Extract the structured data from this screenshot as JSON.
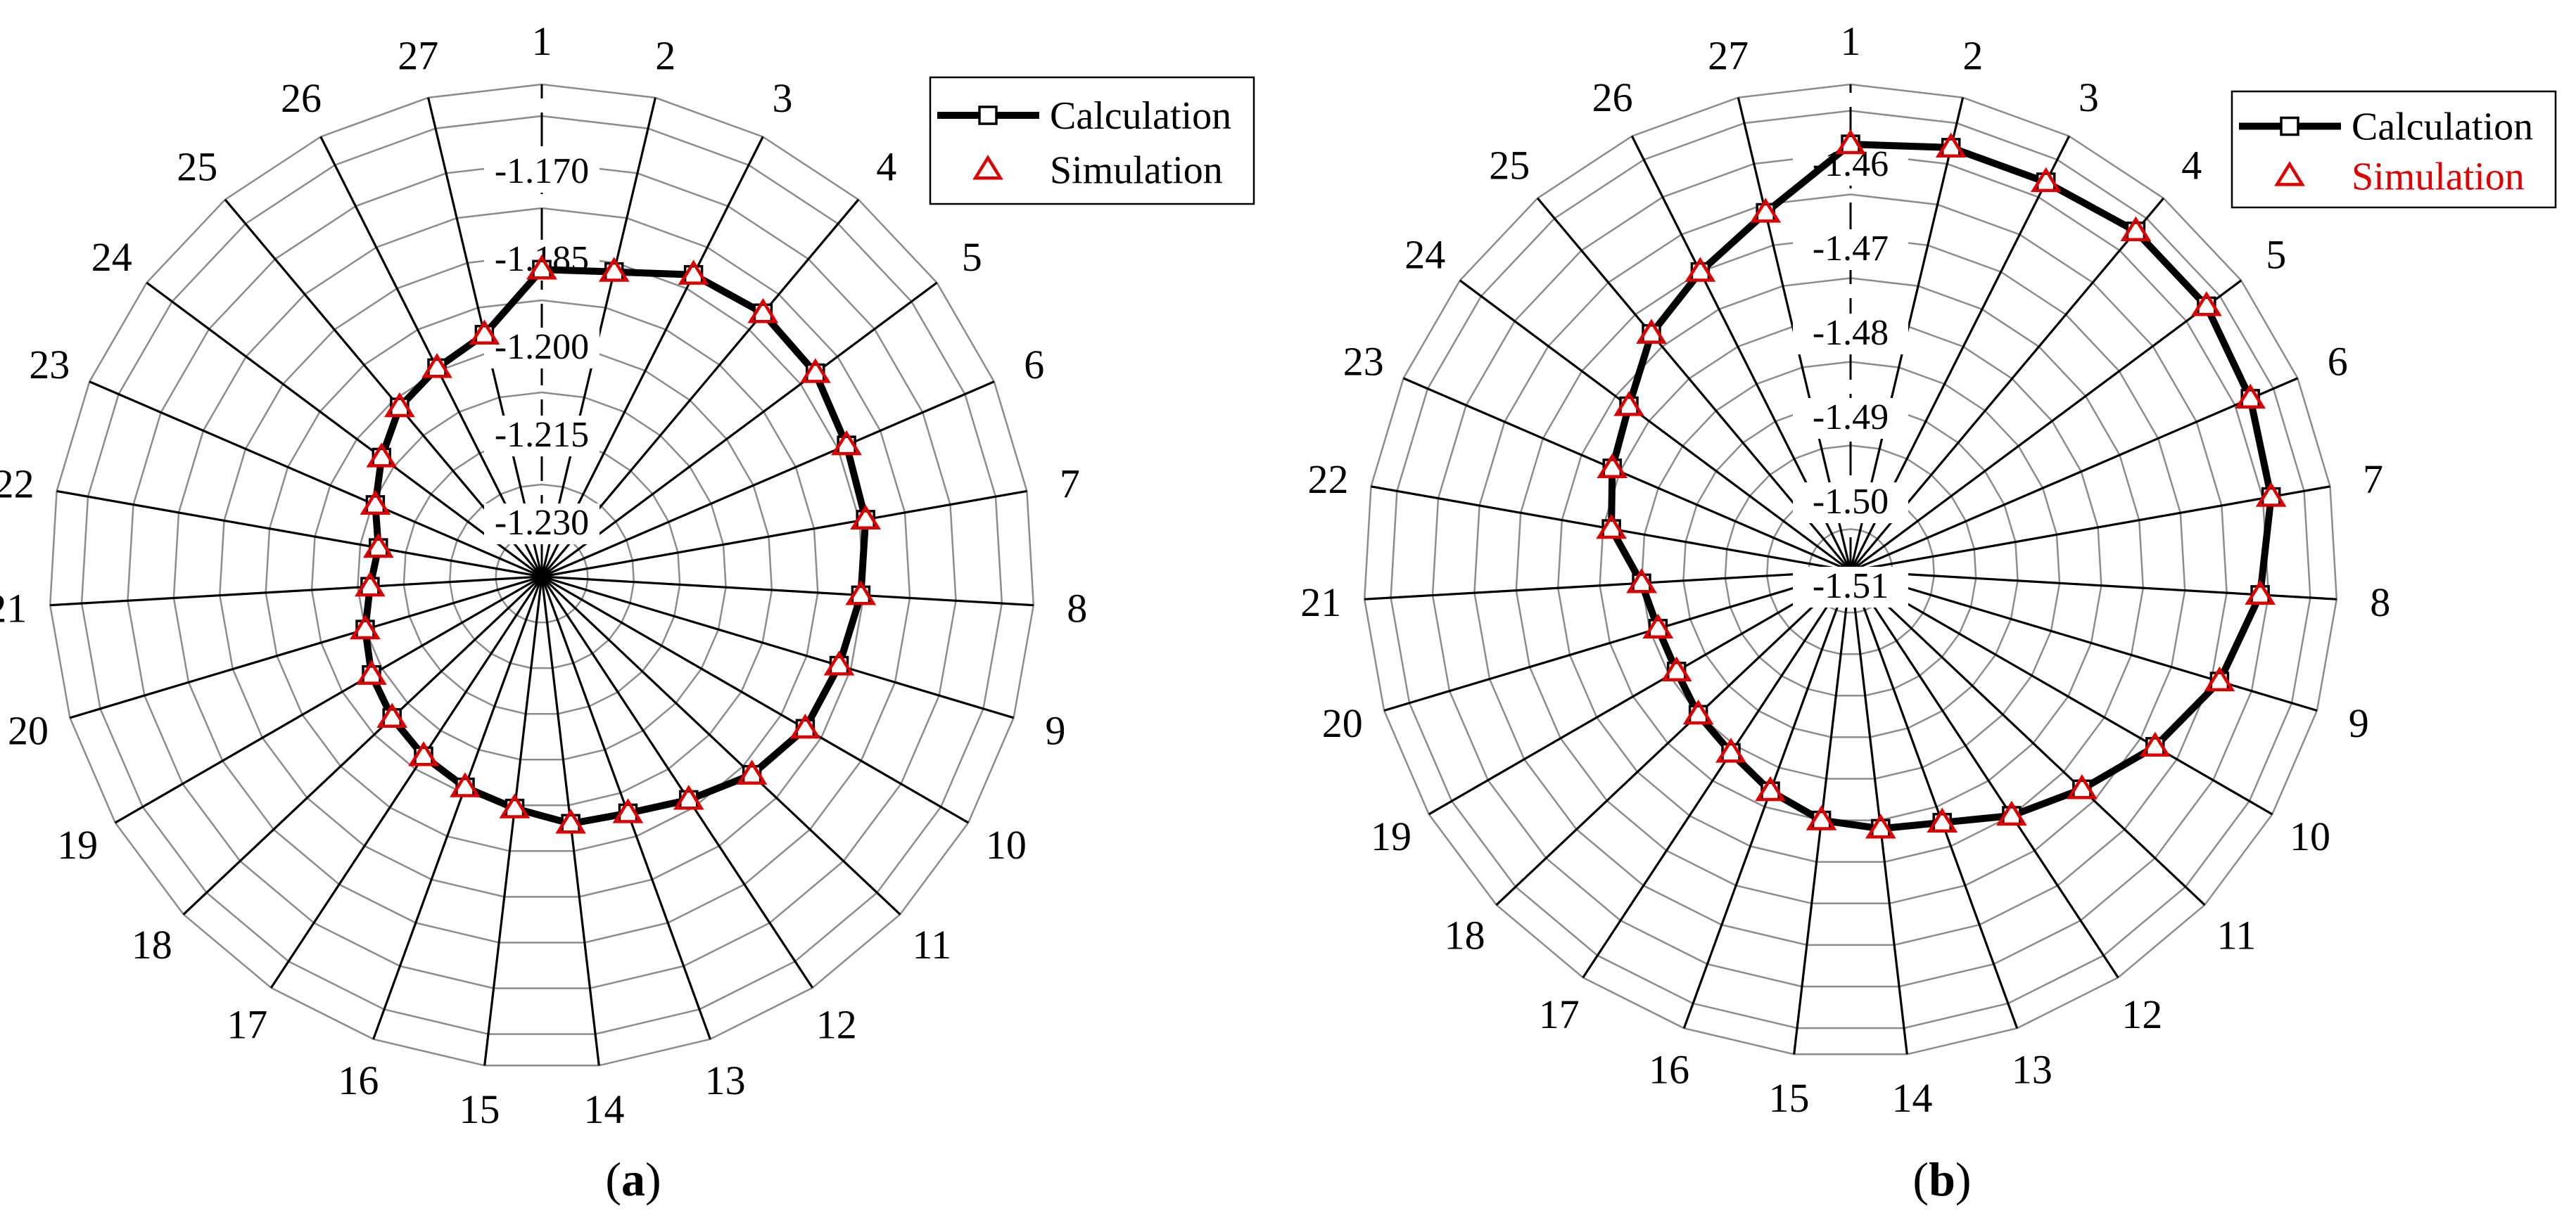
{
  "chart_data": [
    {
      "type": "radar",
      "panel_label": {
        "open": "(",
        "letter": "a",
        "close": ")"
      },
      "directions": [
        "1",
        "2",
        "3",
        "4",
        "5",
        "6",
        "7",
        "8",
        "9",
        "10",
        "11",
        "12",
        "13",
        "14",
        "15",
        "16",
        "17",
        "18",
        "19",
        "20",
        "21",
        "22",
        "23",
        "24",
        "25",
        "26",
        "27"
      ],
      "radial_ticks": [
        "-1.170",
        "-1.185",
        "-1.200",
        "-1.215",
        "-1.230"
      ],
      "rlim_outer": -1.17,
      "rlim_center": -1.29,
      "ring_values": [
        -1.17,
        -1.185,
        -1.2,
        -1.215,
        -1.23,
        -1.245,
        -1.26,
        -1.275
      ],
      "legend_position": "top-right",
      "series": [
        {
          "name": "Calculation",
          "color": "#000000",
          "marker": "square",
          "values": [
            -1.19,
            -1.188,
            -1.18,
            -1.178,
            -1.179,
            -1.182,
            -1.183,
            -1.186,
            -1.189,
            -1.191,
            -1.196,
            -1.203,
            -1.208,
            -1.209,
            -1.214,
            -1.217,
            -1.22,
            -1.223,
            -1.226,
            -1.23,
            -1.234,
            -1.236,
            -1.231,
            -1.225,
            -1.218,
            -1.214,
            -1.209
          ]
        },
        {
          "name": "Simulation",
          "color": "#e00000",
          "marker": "triangle",
          "values": [
            -1.19,
            -1.188,
            -1.18,
            -1.178,
            -1.179,
            -1.182,
            -1.183,
            -1.186,
            -1.189,
            -1.191,
            -1.196,
            -1.203,
            -1.208,
            -1.209,
            -1.214,
            -1.217,
            -1.22,
            -1.223,
            -1.226,
            -1.23,
            -1.234,
            -1.236,
            -1.231,
            -1.225,
            -1.218,
            -1.214,
            -1.209
          ]
        }
      ]
    },
    {
      "type": "radar",
      "panel_label": {
        "open": "(",
        "letter": "b",
        "close": ")"
      },
      "directions": [
        "1",
        "2",
        "3",
        "4",
        "5",
        "6",
        "7",
        "8",
        "9",
        "10",
        "11",
        "12",
        "13",
        "14",
        "15",
        "16",
        "17",
        "18",
        "19",
        "20",
        "21",
        "22",
        "23",
        "24",
        "25",
        "26",
        "27"
      ],
      "radial_ticks": [
        "-1.46",
        "-1.47",
        "-1.48",
        "-1.49",
        "-1.50",
        "-1.51"
      ],
      "rlim_outer": -1.46,
      "rlim_center": -1.52,
      "ring_values": [
        -1.46,
        -1.47,
        -1.48,
        -1.49,
        -1.5,
        -1.51
      ],
      "legend_position": "top-right",
      "series": [
        {
          "name": "Calculation",
          "color": "#000000",
          "marker": "square",
          "values": [
            -1.469,
            -1.468,
            -1.468,
            -1.467,
            -1.467,
            -1.468,
            -1.469,
            -1.471,
            -1.474,
            -1.478,
            -1.482,
            -1.485,
            -1.488,
            -1.489,
            -1.49,
            -1.492,
            -1.494,
            -1.495,
            -1.496,
            -1.496,
            -1.495,
            -1.491,
            -1.489,
            -1.487,
            -1.483,
            -1.48,
            -1.476
          ]
        },
        {
          "name": "Simulation",
          "color": "#e00000",
          "marker": "triangle",
          "values": [
            -1.469,
            -1.468,
            -1.468,
            -1.467,
            -1.467,
            -1.468,
            -1.469,
            -1.471,
            -1.474,
            -1.478,
            -1.482,
            -1.485,
            -1.488,
            -1.489,
            -1.49,
            -1.492,
            -1.494,
            -1.495,
            -1.496,
            -1.496,
            -1.495,
            -1.491,
            -1.489,
            -1.487,
            -1.483,
            -1.48,
            -1.476
          ]
        }
      ]
    }
  ]
}
